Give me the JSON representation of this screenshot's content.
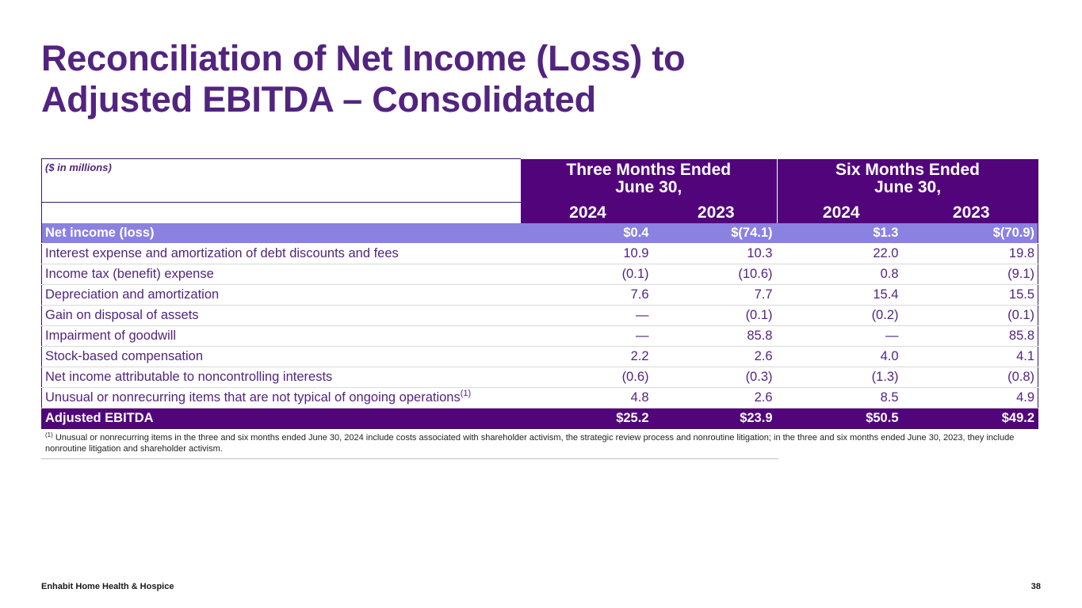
{
  "title": {
    "line1": "Reconciliation of Net Income (Loss) to",
    "line2": "Adjusted EBITDA – Consolidated"
  },
  "table": {
    "units_label": "($ in millions)",
    "groups": [
      {
        "line1": "Three Months Ended",
        "line2": "June 30,"
      },
      {
        "line1": "Six Months Ended",
        "line2": "June 30,"
      }
    ],
    "years": [
      "2024",
      "2023",
      "2024",
      "2023"
    ],
    "rows": [
      {
        "label": "Net income (loss)",
        "values": [
          "$0.4",
          "$(74.1)",
          "$1.3",
          "$(70.9)"
        ]
      },
      {
        "label": "Interest expense and amortization of debt discounts and fees",
        "values": [
          "10.9",
          "10.3",
          "22.0",
          "19.8"
        ]
      },
      {
        "label": "Income tax (benefit) expense",
        "values": [
          "(0.1)",
          "(10.6)",
          "0.8",
          "(9.1)"
        ]
      },
      {
        "label": "Depreciation and amortization",
        "values": [
          "7.6",
          "7.7",
          "15.4",
          "15.5"
        ]
      },
      {
        "label": "Gain on disposal of assets",
        "values": [
          "—",
          "(0.1)",
          "(0.2)",
          "(0.1)"
        ]
      },
      {
        "label": "Impairment of goodwill",
        "values": [
          "—",
          "85.8",
          "—",
          "85.8"
        ]
      },
      {
        "label": "Stock-based compensation",
        "values": [
          "2.2",
          "2.6",
          "4.0",
          "4.1"
        ]
      },
      {
        "label": "Net income attributable to noncontrolling interests",
        "values": [
          "(0.6)",
          "(0.3)",
          "(1.3)",
          "(0.8)"
        ]
      },
      {
        "label": "Unusual or nonrecurring items that are not typical of ongoing operations",
        "footnote_ref": "(1)",
        "values": [
          "4.8",
          "2.6",
          "8.5",
          "4.9"
        ]
      },
      {
        "label": "Adjusted EBITDA",
        "values": [
          "$25.2",
          "$23.9",
          "$50.5",
          "$49.2"
        ]
      }
    ]
  },
  "footnote": {
    "marker": "(1)",
    "text": "Unusual or nonrecurring items in the three and six months ended June 30, 2024 include costs associated with shareholder activism, the strategic review process and nonroutine litigation; in the three and six months ended June 30, 2023, they include nonroutine litigation and shareholder activism."
  },
  "footer": {
    "company": "Enhabit Home Health & Hospice",
    "page_number": "38"
  },
  "colors": {
    "title": "#52247f",
    "header_bg": "#52057b",
    "highlight_row_bg": "#8a81e0",
    "text": "#52247f"
  }
}
